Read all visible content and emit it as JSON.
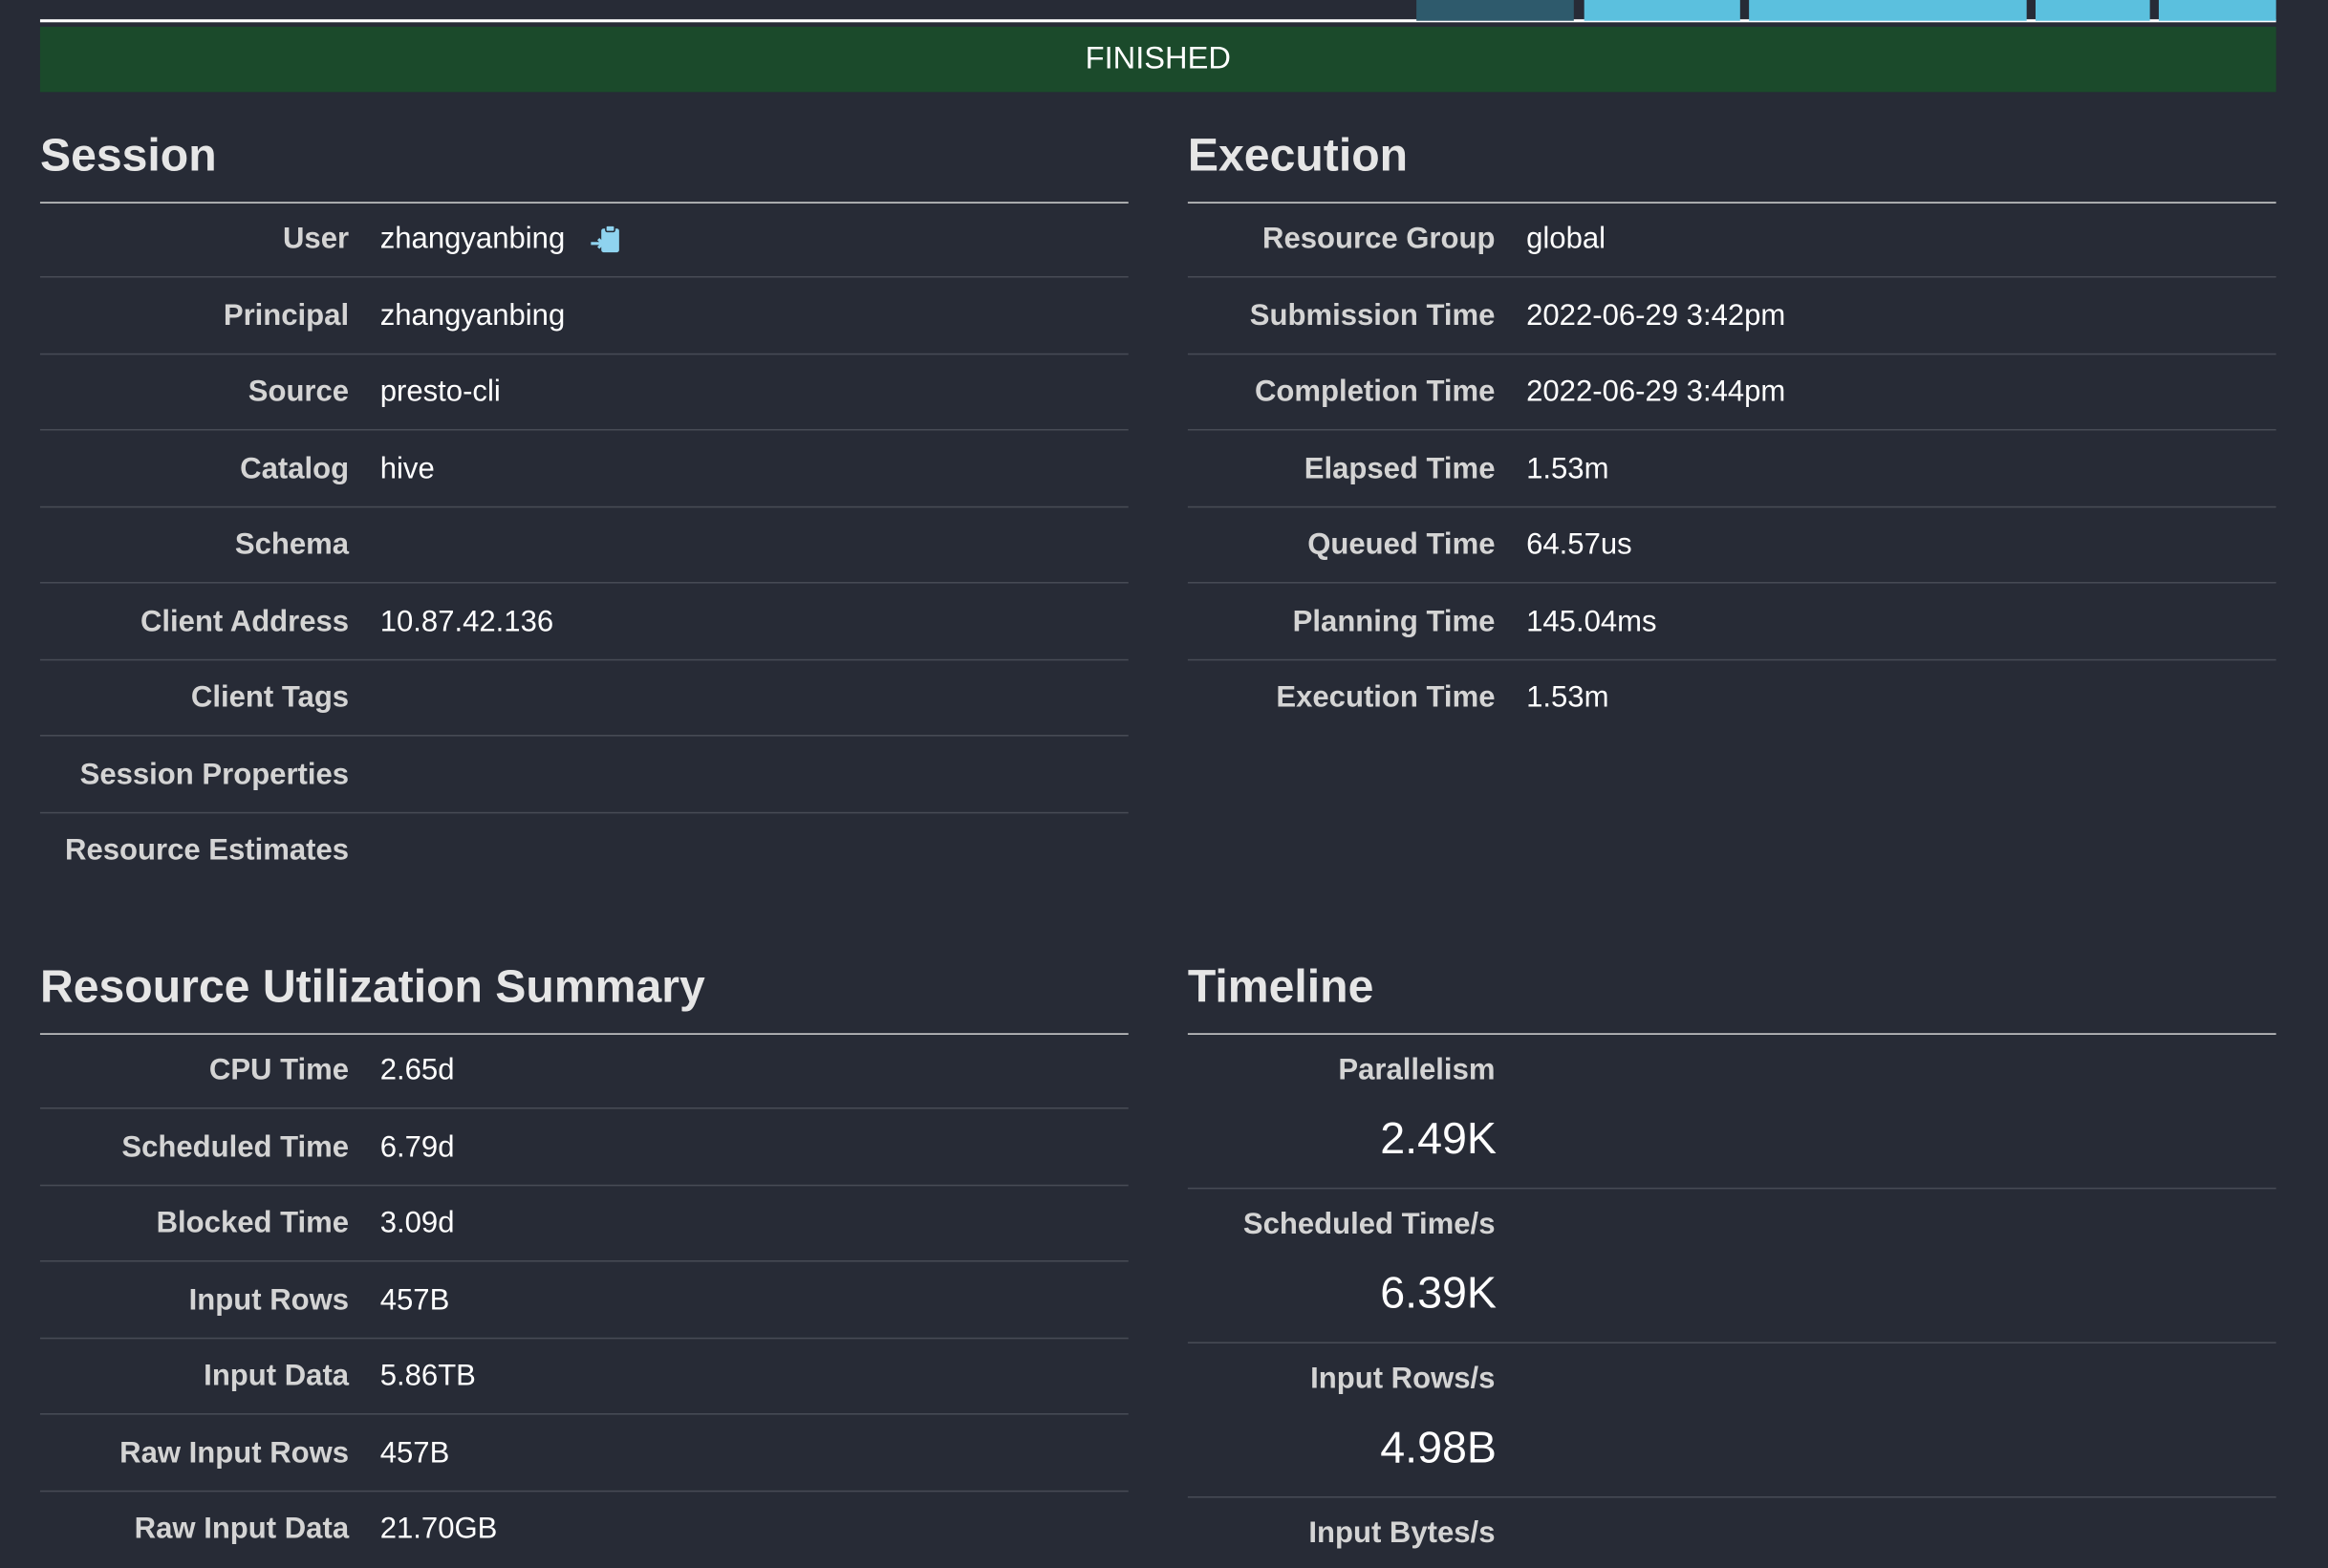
{
  "status": "FINISHED",
  "session": {
    "title": "Session",
    "rows": [
      {
        "label": "User",
        "value": "zhangyanbing"
      },
      {
        "label": "Principal",
        "value": "zhangyanbing"
      },
      {
        "label": "Source",
        "value": "presto-cli"
      },
      {
        "label": "Catalog",
        "value": "hive"
      },
      {
        "label": "Schema"
      },
      {
        "label": "Client Address",
        "value": "10.87.42.136"
      },
      {
        "label": "Client Tags"
      },
      {
        "label": "Session Properties"
      },
      {
        "label": "Resource Estimates"
      }
    ]
  },
  "execution": {
    "title": "Execution",
    "rows": [
      {
        "label": "Resource Group",
        "value": "global"
      },
      {
        "label": "Submission Time",
        "value": "2022-06-29 3:42pm"
      },
      {
        "label": "Completion Time",
        "value": "2022-06-29 3:44pm"
      },
      {
        "label": "Elapsed Time",
        "value": "1.53m"
      },
      {
        "label": "Queued Time",
        "value": "64.57us"
      },
      {
        "label": "Planning Time",
        "value": "145.04ms"
      },
      {
        "label": "Execution Time",
        "value": "1.53m"
      }
    ]
  },
  "resources": {
    "title": "Resource Utilization Summary",
    "rows": [
      {
        "label": "CPU Time",
        "value": "2.65d"
      },
      {
        "label": "Scheduled Time",
        "value": "6.79d"
      },
      {
        "label": "Blocked Time",
        "value": "3.09d"
      },
      {
        "label": "Input Rows",
        "value": "457B"
      },
      {
        "label": "Input Data",
        "value": "5.86TB"
      },
      {
        "label": "Raw Input Rows",
        "value": "457B"
      },
      {
        "label": "Raw Input Data",
        "value": "21.70GB"
      }
    ]
  },
  "timeline": {
    "title": "Timeline",
    "items": [
      {
        "label": "Parallelism",
        "value": "2.49K"
      },
      {
        "label": "Scheduled Time/s",
        "value": "6.39K"
      },
      {
        "label": "Input Rows/s",
        "value": "4.98B"
      },
      {
        "label": "Input Bytes/s"
      }
    ]
  }
}
